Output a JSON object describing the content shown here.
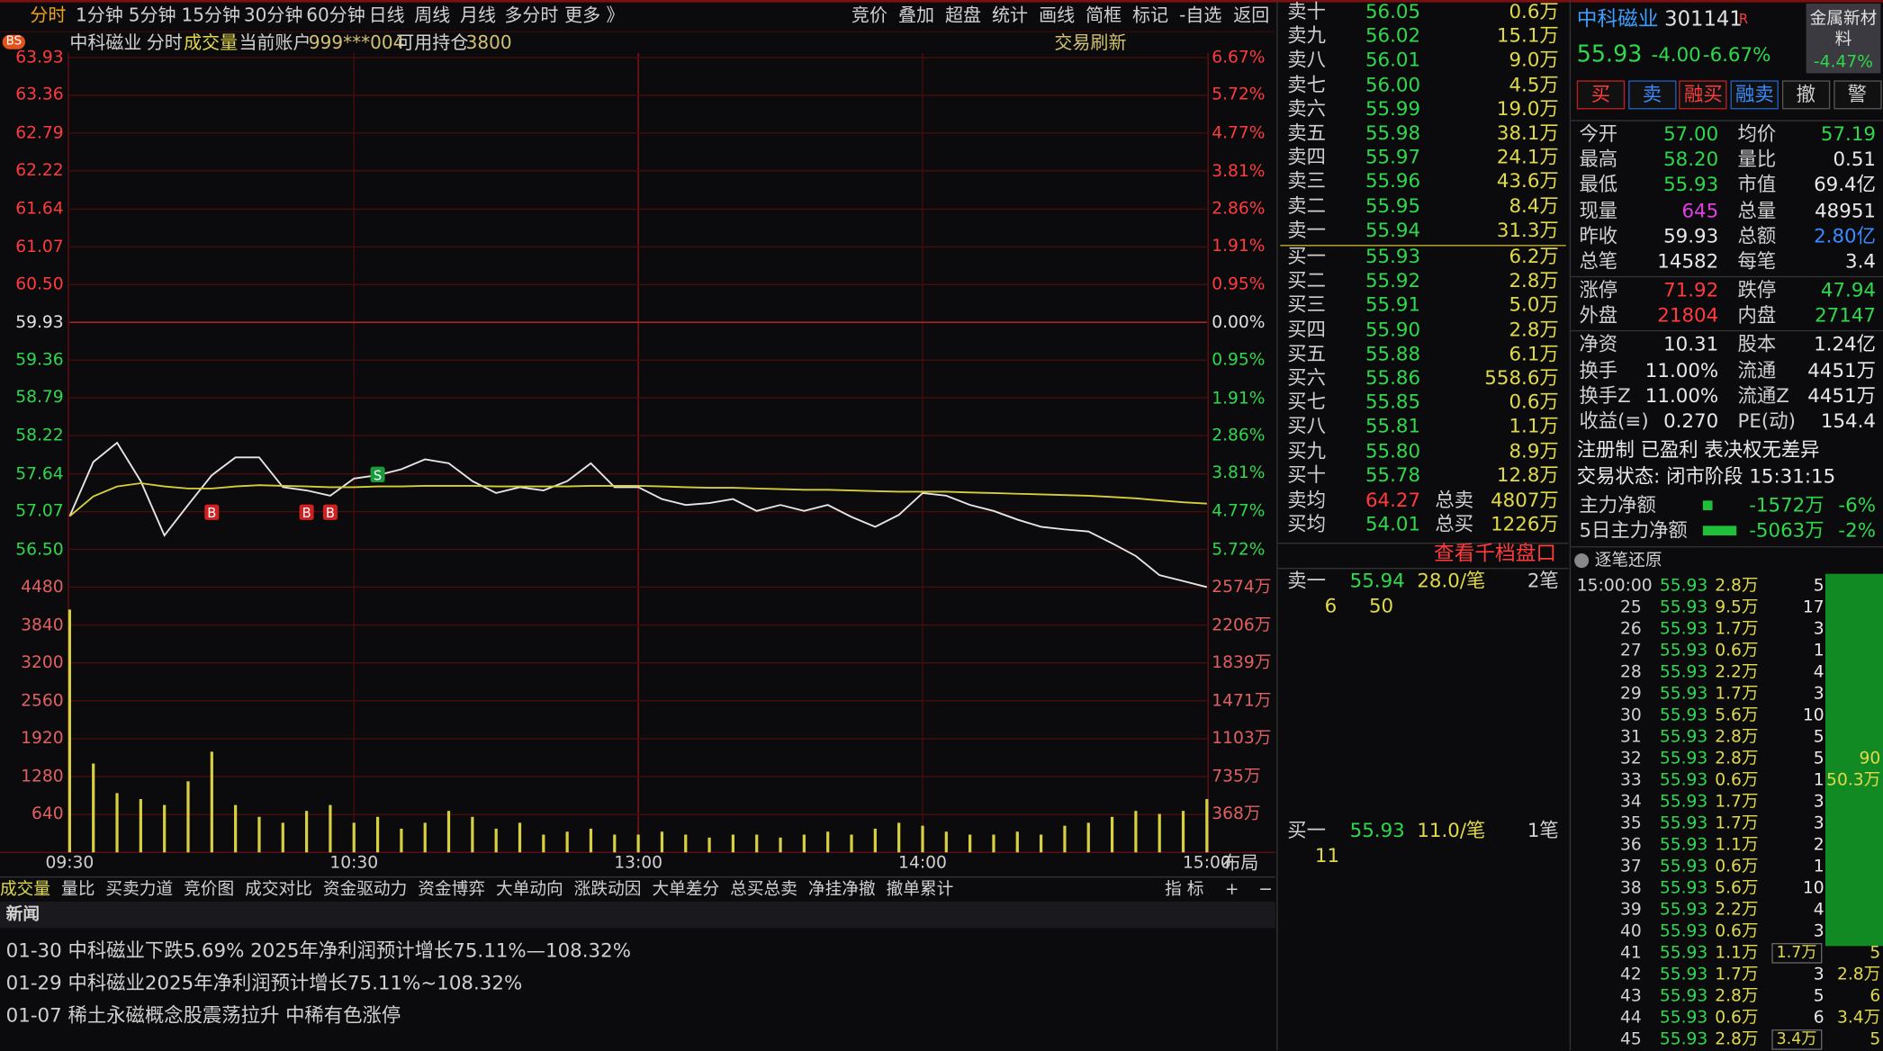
{
  "toolbar": {
    "periods": [
      "分时",
      "1分钟",
      "5分钟",
      "15分钟",
      "30分钟",
      "60分钟",
      "日线",
      "周线",
      "月线",
      "多分时",
      "更多 》"
    ],
    "tools": [
      "竞价",
      "叠加",
      "超盘",
      "统计",
      "画线",
      "简框",
      "标记",
      "-自选",
      "返回"
    ]
  },
  "info_bar": {
    "badge": "BS",
    "name": "中科磁业",
    "mode": "分时",
    "indicator": "成交量",
    "account_label": "当前账户",
    "account": "999***004",
    "position_label": "可用持仓",
    "position": "3800",
    "refresh": "交易刷新"
  },
  "layout_button": "布局",
  "chart_data": [
    {
      "type": "line",
      "x": [
        "09:30",
        "09:35",
        "09:40",
        "09:45",
        "09:50",
        "09:55",
        "10:00",
        "10:05",
        "10:10",
        "10:15",
        "10:20",
        "10:25",
        "10:30",
        "10:35",
        "10:40",
        "10:45",
        "10:50",
        "10:55",
        "11:00",
        "11:05",
        "11:10",
        "11:15",
        "11:20",
        "11:25",
        "11:30",
        "13:05",
        "13:10",
        "13:15",
        "13:20",
        "13:25",
        "13:30",
        "13:35",
        "13:40",
        "13:45",
        "13:50",
        "13:55",
        "14:00",
        "14:05",
        "14:10",
        "14:15",
        "14:20",
        "14:25",
        "14:30",
        "14:35",
        "14:40",
        "14:45",
        "14:50",
        "14:55",
        "15:00"
      ],
      "series": [
        {
          "color": "#e6e6e6",
          "values": [
            57.0,
            57.82,
            58.11,
            57.53,
            56.71,
            57.17,
            57.62,
            57.89,
            57.89,
            57.44,
            57.39,
            57.31,
            57.57,
            57.62,
            57.71,
            57.86,
            57.8,
            57.53,
            57.35,
            57.44,
            57.39,
            57.53,
            57.8,
            57.44,
            57.44,
            57.26,
            57.17,
            57.2,
            57.26,
            57.08,
            57.17,
            57.08,
            57.17,
            56.99,
            56.84,
            57.02,
            57.35,
            57.31,
            57.17,
            57.08,
            56.95,
            56.84,
            56.8,
            56.77,
            56.59,
            56.4,
            56.11,
            56.02,
            55.93
          ]
        },
        {
          "color": "#d6cf3c",
          "values": [
            57.0,
            57.3,
            57.45,
            57.5,
            57.45,
            57.42,
            57.42,
            57.45,
            57.47,
            57.46,
            57.45,
            57.44,
            57.44,
            57.45,
            57.45,
            57.46,
            57.46,
            57.46,
            57.45,
            57.45,
            57.45,
            57.45,
            57.46,
            57.46,
            57.46,
            57.45,
            57.44,
            57.43,
            57.43,
            57.42,
            57.41,
            57.4,
            57.4,
            57.39,
            57.38,
            57.37,
            57.37,
            57.37,
            57.36,
            57.35,
            57.34,
            57.33,
            57.32,
            57.31,
            57.29,
            57.27,
            57.24,
            57.21,
            57.19
          ]
        }
      ],
      "ylim": [
        55.93,
        63.93
      ],
      "yticks": [
        63.93,
        63.36,
        62.79,
        62.22,
        61.64,
        61.07,
        {
          "value": 60.5,
          "label": "60.50"
        },
        59.93,
        59.36,
        58.79,
        58.22,
        57.64,
        57.07,
        {
          "value": 56.5,
          "label": "56.50"
        }
      ],
      "y2lim": [
        -6.67,
        6.67
      ],
      "y2ticks": [
        {
          "value": 6.67,
          "label": "6.67%"
        },
        {
          "value": 5.72,
          "label": "5.72%"
        },
        {
          "value": 4.77,
          "label": "4.77%"
        },
        {
          "value": 3.81,
          "label": "3.81%"
        },
        {
          "value": 2.86,
          "label": "2.86%"
        },
        {
          "value": 1.91,
          "label": "1.91%"
        },
        {
          "value": 0.95,
          "label": "0.95%"
        },
        {
          "value": 0,
          "label": "0.00%"
        },
        {
          "value": -0.95,
          "label": "0.95%"
        },
        {
          "value": -1.91,
          "label": "1.91%"
        },
        {
          "value": -2.86,
          "label": "2.86%"
        },
        {
          "value": -3.81,
          "label": "3.81%"
        },
        {
          "value": -4.77,
          "label": "4.77%"
        },
        {
          "value": -5.72,
          "label": "5.72%"
        }
      ],
      "xticks": [
        "09:30",
        "10:30",
        "13:00",
        "14:00",
        "15:00"
      ],
      "markers": [
        {
          "label": "B",
          "x": "10:00",
          "y": 57.07
        },
        {
          "label": "B",
          "x": "10:20",
          "y": 57.07
        },
        {
          "label": "B",
          "x": "10:25",
          "y": 57.07
        },
        {
          "label": "S",
          "x": "10:35",
          "y": 57.64
        }
      ],
      "grid": true
    },
    {
      "type": "bar",
      "color": "#d8d040",
      "values": [
        4100,
        1500,
        1000,
        900,
        800,
        1200,
        1700,
        800,
        600,
        500,
        700,
        800,
        500,
        600,
        400,
        500,
        700,
        600,
        400,
        500,
        300,
        350,
        400,
        300,
        300,
        350,
        300,
        250,
        300,
        300,
        250,
        300,
        350,
        300,
        400,
        500,
        450,
        350,
        300,
        300,
        350,
        300,
        450,
        500,
        600,
        700,
        650,
        700,
        900
      ],
      "ylim": [
        0,
        4480
      ],
      "yticks": [
        4480,
        3840,
        3200,
        2560,
        1920,
        1280,
        640
      ],
      "y2lim": [
        0,
        2574
      ],
      "y2ticks": [
        {
          "value": 2574,
          "label": "2574万"
        },
        {
          "value": 2206,
          "label": "2206万"
        },
        {
          "value": 1839,
          "label": "1839万"
        },
        {
          "value": 1471,
          "label": "1471万"
        },
        {
          "value": 1103,
          "label": "1103万"
        },
        {
          "value": 735,
          "label": "735万"
        },
        {
          "value": 368,
          "label": "368万"
        }
      ],
      "grid": true
    }
  ],
  "indicator_tabs": {
    "tabs": [
      "成交量",
      "量比",
      "买卖力道",
      "竞价图",
      "成交对比",
      "资金驱动力",
      "资金博弈",
      "大单动向",
      "涨跌动因",
      "大单差分",
      "总买总卖",
      "净挂净撤",
      "撤单累计"
    ],
    "indicator": "指 标",
    "add": "+",
    "remove": "−"
  },
  "news": {
    "title": "新闻",
    "items": [
      "01-30 中科磁业下跌5.69% 2025年净利润预计增长75.11%—108.32%",
      "01-29 中科磁业2025年净利润预计增长75.11%~108.32%",
      "01-07 稀土永磁概念股震荡拉升 中稀有色涨停"
    ]
  },
  "order_book": {
    "asks": [
      {
        "label": "卖十",
        "price": "56.05",
        "volume": "0.6万"
      },
      {
        "label": "卖九",
        "price": "56.02",
        "volume": "15.1万"
      },
      {
        "label": "卖八",
        "price": "56.01",
        "volume": "9.0万"
      },
      {
        "label": "卖七",
        "price": "56.00",
        "volume": "4.5万"
      },
      {
        "label": "卖六",
        "price": "55.99",
        "volume": "19.0万"
      },
      {
        "label": "卖五",
        "price": "55.98",
        "volume": "38.1万"
      },
      {
        "label": "卖四",
        "price": "55.97",
        "volume": "24.1万"
      },
      {
        "label": "卖三",
        "price": "55.96",
        "volume": "43.6万"
      },
      {
        "label": "卖二",
        "price": "55.95",
        "volume": "8.4万"
      },
      {
        "label": "卖一",
        "price": "55.94",
        "volume": "31.3万"
      }
    ],
    "bids": [
      {
        "label": "买一",
        "price": "55.93",
        "volume": "6.2万"
      },
      {
        "label": "买二",
        "price": "55.92",
        "volume": "2.8万"
      },
      {
        "label": "买三",
        "price": "55.91",
        "volume": "5.0万"
      },
      {
        "label": "买四",
        "price": "55.90",
        "volume": "2.8万"
      },
      {
        "label": "买五",
        "price": "55.88",
        "volume": "6.1万"
      },
      {
        "label": "买六",
        "price": "55.86",
        "volume": "558.6万"
      },
      {
        "label": "买七",
        "price": "55.85",
        "volume": "0.6万"
      },
      {
        "label": "买八",
        "price": "55.81",
        "volume": "1.1万"
      },
      {
        "label": "买九",
        "price": "55.80",
        "volume": "8.9万"
      },
      {
        "label": "买十",
        "price": "55.78",
        "volume": "12.8万"
      }
    ],
    "ask_avg": {
      "label": "卖均",
      "price": "64.27",
      "total_label": "总卖",
      "total": "4807万"
    },
    "bid_avg": {
      "label": "买均",
      "price": "54.01",
      "total_label": "总买",
      "total": "1226万"
    },
    "depth_link": "查看千档盘口",
    "best_ask": {
      "label": "卖一",
      "price": "55.94",
      "per_trade": "28.0/笔",
      "count": "2笔",
      "queue": [
        "6",
        "50"
      ]
    },
    "best_bid": {
      "label": "买一",
      "price": "55.93",
      "per_trade": "11.0/笔",
      "count": "1笔",
      "queue": [
        "11"
      ]
    }
  },
  "quote": {
    "name": "中科磁业",
    "code": "301141",
    "flag": "R",
    "price": "55.93",
    "change": "-4.00",
    "change_pct": "-6.67%",
    "sector": {
      "name": "金属新材料",
      "change_pct": "-4.47%"
    },
    "buttons": [
      "买",
      "卖",
      "融买",
      "融卖",
      "撤",
      "警"
    ],
    "stats": [
      {
        "l1": "今开",
        "v1": "57.00",
        "c1": "#2fd84b",
        "l2": "均价",
        "v2": "57.19",
        "c2": "#2fd84b"
      },
      {
        "l1": "最高",
        "v1": "58.20",
        "c1": "#2fd84b",
        "l2": "量比",
        "v2": "0.51"
      },
      {
        "l1": "最低",
        "v1": "55.93",
        "c1": "#2fd84b",
        "l2": "市值",
        "v2": "69.4亿"
      },
      {
        "l1": "现量",
        "v1": "645",
        "c1": "#e040e0",
        "l2": "总量",
        "v2": "48951"
      },
      {
        "l1": "昨收",
        "v1": "59.93",
        "l2": "总额",
        "v2": "2.80亿",
        "c2": "#3a8bff"
      },
      {
        "l1": "总笔",
        "v1": "14582",
        "l2": "每笔",
        "v2": "3.4"
      },
      {
        "l1": "涨停",
        "v1": "71.92",
        "c1": "#ff3b3b",
        "l2": "跌停",
        "v2": "47.94",
        "c2": "#2fd84b"
      },
      {
        "l1": "外盘",
        "v1": "21804",
        "c1": "#ff3b3b",
        "l2": "内盘",
        "v2": "27147",
        "c2": "#2fd84b"
      },
      {
        "l1": "净资",
        "v1": "10.31",
        "l2": "股本",
        "v2": "1.24亿"
      },
      {
        "l1": "换手",
        "v1": "11.00%",
        "l2": "流通",
        "v2": "4451万"
      },
      {
        "l1": "换手Z",
        "v1": "11.00%",
        "l2": "流通Z",
        "v2": "4451万"
      },
      {
        "l1": "收益(≡)",
        "v1": "0.270",
        "l2": "PE(动)",
        "v2": "154.4"
      }
    ],
    "tags": "注册制 已盈利 表决权无差异",
    "status": "交易状态: 闭市阶段 15:31:15",
    "flows": [
      {
        "label": "主力净额",
        "value": "-1572万",
        "pct": "-6%"
      },
      {
        "label": "5日主力净额",
        "value": "-5063万",
        "pct": "-2%"
      }
    ]
  },
  "trades": {
    "title": "逐笔还原",
    "rows": [
      {
        "time": "15:00:00",
        "price": "55.93",
        "volume": "2.8万",
        "count": "5"
      },
      {
        "time": "25",
        "price": "55.93",
        "volume": "9.5万",
        "count": "17"
      },
      {
        "time": "26",
        "price": "55.93",
        "volume": "1.7万",
        "count": "3"
      },
      {
        "time": "27",
        "price": "55.93",
        "volume": "0.6万",
        "count": "1"
      },
      {
        "time": "28",
        "price": "55.93",
        "volume": "2.2万",
        "count": "4"
      },
      {
        "time": "29",
        "price": "55.93",
        "volume": "1.7万",
        "count": "3"
      },
      {
        "time": "30",
        "price": "55.93",
        "volume": "5.6万",
        "count": "10"
      },
      {
        "time": "31",
        "price": "55.93",
        "volume": "2.8万",
        "count": "5"
      },
      {
        "time": "32",
        "price": "55.93",
        "volume": "2.8万",
        "count": "5",
        "side": "90"
      },
      {
        "time": "33",
        "price": "55.93",
        "volume": "0.6万",
        "count": "1",
        "side": "50.3万"
      },
      {
        "time": "34",
        "price": "55.93",
        "volume": "1.7万",
        "count": "3"
      },
      {
        "time": "35",
        "price": "55.93",
        "volume": "1.7万",
        "count": "3"
      },
      {
        "time": "36",
        "price": "55.93",
        "volume": "1.1万",
        "count": "2"
      },
      {
        "time": "37",
        "price": "55.93",
        "volume": "0.6万",
        "count": "1"
      },
      {
        "time": "38",
        "price": "55.93",
        "volume": "5.6万",
        "count": "10"
      },
      {
        "time": "39",
        "price": "55.93",
        "volume": "2.2万",
        "count": "4"
      },
      {
        "time": "40",
        "price": "55.93",
        "volume": "0.6万",
        "count": "3"
      },
      {
        "time": "41",
        "price": "55.93",
        "volume": "1.1万",
        "note": "1.7万",
        "side": "5"
      },
      {
        "time": "42",
        "price": "55.93",
        "volume": "1.7万",
        "count": "3",
        "side": "2.8万"
      },
      {
        "time": "43",
        "price": "55.93",
        "volume": "2.8万",
        "count": "5",
        "side": "6"
      },
      {
        "time": "44",
        "price": "55.93",
        "volume": "0.6万",
        "count": "6",
        "side": "3.4万"
      },
      {
        "time": "45",
        "price": "55.93",
        "volume": "2.8万",
        "note": "3.4万",
        "side": "5"
      }
    ]
  }
}
